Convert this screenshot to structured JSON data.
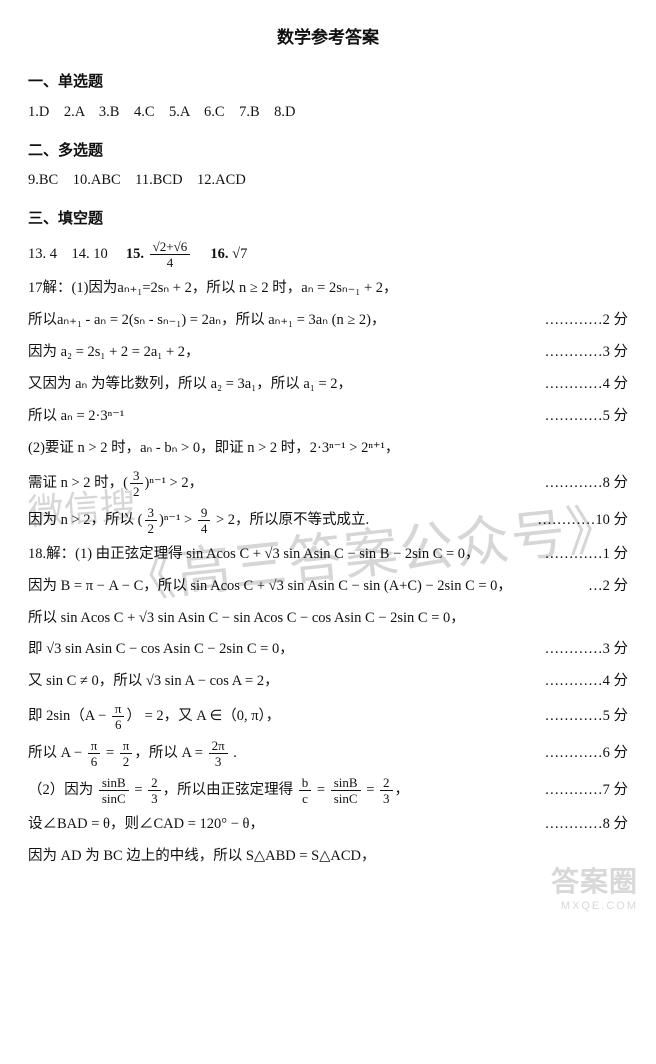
{
  "title": "数学参考答案",
  "sections": {
    "single": {
      "head": "一、单选题",
      "answers": "1.D　2.A　3.B　4.C　5.A　6.C　7.B　8.D"
    },
    "multi": {
      "head": "二、多选题",
      "answers": "9.BC　10.ABC　11.BCD　12.ACD"
    },
    "blank": {
      "head": "三、填空题",
      "q13": "13. 4　14. 10　",
      "q15_label": "15.",
      "q15_num_a": "√2",
      "q15_num_plus": "+",
      "q15_num_b": "√6",
      "q15_den": "4",
      "q16_label": "　16.",
      "q16_val": "√7"
    }
  },
  "solutions": {
    "l1": "17解：(1)因为aₙ₊₁=2sₙ + 2，所以 n ≥ 2 时，aₙ = 2sₙ₋₁ + 2，",
    "l2": {
      "lhs": "所以aₙ₊₁ - aₙ = 2(sₙ - sₙ₋₁) = 2aₙ，所以 aₙ₊₁ = 3aₙ (n ≥ 2)，",
      "rhs": "…………2 分"
    },
    "l3": {
      "lhs": "因为 a₂ = 2s₁ + 2 = 2a₁ + 2，",
      "rhs": "…………3 分"
    },
    "l4": {
      "lhs": "又因为 aₙ 为等比数列，所以 a₂ = 3a₁，所以 a₁ = 2，",
      "rhs": "…………4 分"
    },
    "l5": {
      "lhs": "所以 aₙ = 2·3ⁿ⁻¹",
      "rhs": "…………5 分"
    },
    "l6": "(2)要证 n > 2 时，aₙ - bₙ > 0，即证 n > 2 时，2·3ⁿ⁻¹ > 2ⁿ⁺¹，",
    "l7": {
      "lhs_pre": "需证 n > 2 时，(",
      "frac_num": "3",
      "frac_den": "2",
      "lhs_post": ")ⁿ⁻¹ > 2，",
      "rhs": "…………8 分"
    },
    "l8": {
      "lhs_pre": "因为 n > 2，所以 (",
      "f1_num": "3",
      "f1_den": "2",
      "mid": ")ⁿ⁻¹ > ",
      "f2_num": "9",
      "f2_den": "4",
      "lhs_post": " > 2，所以原不等式成立.",
      "rhs": "…………10 分"
    },
    "l9": {
      "lhs": "18.解：(1) 由正弦定理得 sin Acos C + √3 sin Asin C − sin B − 2sin C = 0，",
      "rhs": "…………1 分"
    },
    "l10": {
      "lhs": "因为 B = π − A − C，所以 sin Acos C + √3 sin Asin C − sin (A+C) − 2sin C = 0，",
      "rhs": "…2 分"
    },
    "l11": "所以 sin Acos C + √3 sin Asin C − sin Acos C − cos Asin C − 2sin C = 0，",
    "l12": {
      "lhs": "即 √3 sin Asin C − cos Asin C − 2sin C = 0，",
      "rhs": "…………3 分"
    },
    "l13": {
      "lhs": "又 sin C ≠ 0，所以 √3 sin A − cos A = 2，",
      "rhs": "…………4 分"
    },
    "l14": {
      "pre": "即 2sin（A − ",
      "f_num": "π",
      "f_den": "6",
      "post": "） = 2，又 A ∈（0, π），",
      "rhs": "…………5 分"
    },
    "l15": {
      "pre": "所以 A − ",
      "f1_num": "π",
      "f1_den": "6",
      "mid": " = ",
      "f2_num": "π",
      "f2_den": "2",
      "mid2": "，所以 A = ",
      "f3_num": "2π",
      "f3_den": "3",
      "post": " .",
      "rhs": "…………6 分"
    },
    "l16": {
      "pre": "（2）因为 ",
      "f1_num": "sinB",
      "f1_den": "sinC",
      "mid": " = ",
      "f2_num": "2",
      "f2_den": "3",
      "mid2": "，所以由正弦定理得 ",
      "f3_num": "b",
      "f3_den": "c",
      "mid3": " = ",
      "f4_num": "sinB",
      "f4_den": "sinC",
      "mid4": " = ",
      "f5_num": "2",
      "f5_den": "3",
      "post": "，",
      "rhs": "…………7 分"
    },
    "l17": {
      "lhs": "设∠BAD = θ，则∠CAD = 120° − θ，",
      "rhs": "…………8 分"
    },
    "l18": "因为 AD 为 BC 边上的中线，所以 S△ABD = S△ACD，"
  },
  "watermark": {
    "a": "微信搜",
    "b": "《高三答案公众号》"
  },
  "corner": {
    "big": "答案圈",
    "small": "MXQE.COM"
  }
}
